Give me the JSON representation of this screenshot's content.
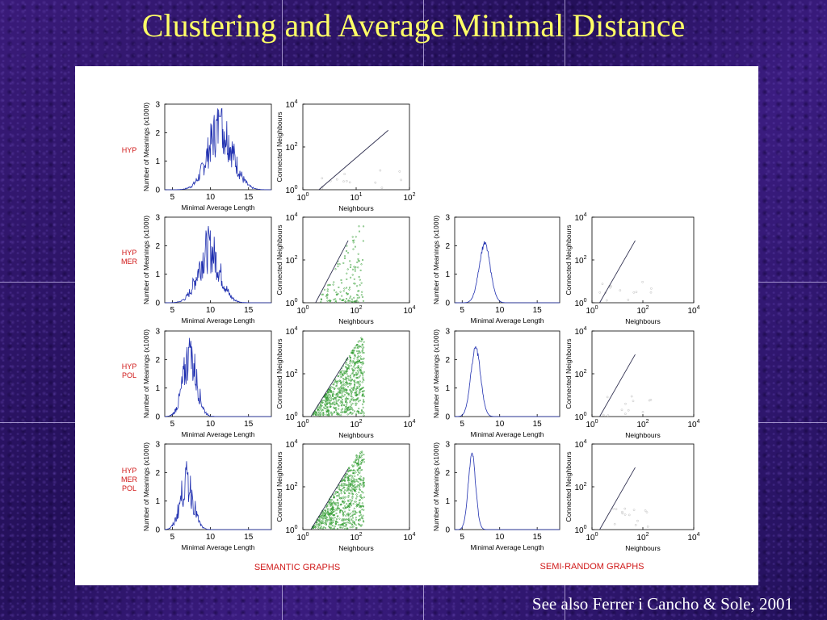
{
  "slide": {
    "title": "Clustering and Average Minimal Distance",
    "footnote": "See also Ferrer i Cancho & Sole, 2001"
  },
  "colors": {
    "title": "#ffff66",
    "background": "#2e1466",
    "row_label": "#d01818",
    "hist_line": "#2030b0",
    "scatter_line": "#303050",
    "scatter_points": "#2a9a2a"
  },
  "groups": [
    "SEMANTIC GRAPHS",
    "SEMI-RANDOM GRAPHS"
  ],
  "rows": [
    {
      "label_lines": [
        "HYP"
      ]
    },
    {
      "label_lines": [
        "HYP",
        "MER"
      ]
    },
    {
      "label_lines": [
        "HYP",
        "POL"
      ]
    },
    {
      "label_lines": [
        "HYP",
        "MER",
        "POL"
      ]
    }
  ],
  "axes": {
    "hist": {
      "xlabel": "Minimal Average Length",
      "ylabel": "Number of Meanings (x1000)",
      "xticks": [
        "5",
        "10",
        "15"
      ],
      "yticks": [
        "0",
        "1",
        "2",
        "3"
      ],
      "xlim": [
        4,
        18
      ],
      "ylim": [
        0,
        3
      ]
    },
    "scatter": {
      "xlabel": "Neighbours",
      "ylabel": "Connected Neighbours",
      "tick_base": "10"
    }
  },
  "chart_data": [
    {
      "type": "line",
      "group": "SEMANTIC GRAPHS",
      "row": "HYP",
      "plot": "hist",
      "peak_x": 11.3,
      "peak_y": 2.65,
      "spread": 1.6,
      "jagged": true
    },
    {
      "type": "scatter",
      "group": "SEMANTIC GRAPHS",
      "row": "HYP",
      "plot": "scatter",
      "xticks_exp": [
        "0",
        "1",
        "2"
      ],
      "yticks_exp": [
        "0",
        "2",
        "4"
      ],
      "xlog_range": [
        0,
        2
      ],
      "ylog_range": [
        0,
        4
      ],
      "line": {
        "x": [
          2,
          40
        ],
        "y": [
          1,
          600
        ]
      },
      "points": "sparse"
    },
    {
      "type": "line",
      "group": "SEMANTIC GRAPHS",
      "row": "HYP MER",
      "plot": "hist",
      "peak_x": 9.8,
      "peak_y": 2.25,
      "spread": 1.4,
      "jagged": true
    },
    {
      "type": "scatter",
      "group": "SEMANTIC GRAPHS",
      "row": "HYP MER",
      "plot": "scatter",
      "xticks_exp": [
        "0",
        "2",
        "4"
      ],
      "yticks_exp": [
        "0",
        "2",
        "4"
      ],
      "xlog_range": [
        0,
        4
      ],
      "ylog_range": [
        0,
        4
      ],
      "line": {
        "x": [
          3,
          50
        ],
        "y": [
          1,
          800
        ]
      },
      "points": "medium"
    },
    {
      "type": "line",
      "group": "SEMI-RANDOM GRAPHS",
      "row": "HYP MER",
      "plot": "hist",
      "peak_x": 8.0,
      "peak_y": 2.1,
      "spread": 0.75,
      "jagged": false
    },
    {
      "type": "scatter",
      "group": "SEMI-RANDOM GRAPHS",
      "row": "HYP MER",
      "plot": "scatter",
      "xticks_exp": [
        "0",
        "2",
        "4"
      ],
      "yticks_exp": [
        "0",
        "2",
        "4"
      ],
      "xlog_range": [
        0,
        4
      ],
      "ylog_range": [
        0,
        4
      ],
      "line": {
        "x": [
          2,
          50
        ],
        "y": [
          1,
          800
        ]
      },
      "points": "sparse"
    },
    {
      "type": "line",
      "group": "SEMANTIC GRAPHS",
      "row": "HYP POL",
      "plot": "hist",
      "peak_x": 7.3,
      "peak_y": 2.5,
      "spread": 0.9,
      "jagged": true
    },
    {
      "type": "scatter",
      "group": "SEMANTIC GRAPHS",
      "row": "HYP POL",
      "plot": "scatter",
      "xticks_exp": [
        "0",
        "2",
        "4"
      ],
      "yticks_exp": [
        "0",
        "2",
        "4"
      ],
      "xlog_range": [
        0,
        4
      ],
      "ylog_range": [
        0,
        4
      ],
      "line": {
        "x": [
          2,
          50
        ],
        "y": [
          1,
          600
        ]
      },
      "points": "dense"
    },
    {
      "type": "line",
      "group": "SEMI-RANDOM GRAPHS",
      "row": "HYP POL",
      "plot": "hist",
      "peak_x": 6.8,
      "peak_y": 2.45,
      "spread": 0.65,
      "jagged": false
    },
    {
      "type": "scatter",
      "group": "SEMI-RANDOM GRAPHS",
      "row": "HYP POL",
      "plot": "scatter",
      "xticks_exp": [
        "0",
        "2",
        "4"
      ],
      "yticks_exp": [
        "0",
        "2",
        "4"
      ],
      "xlog_range": [
        0,
        4
      ],
      "ylog_range": [
        0,
        4
      ],
      "line": {
        "x": [
          2,
          50
        ],
        "y": [
          1,
          800
        ]
      },
      "points": "sparse"
    },
    {
      "type": "line",
      "group": "SEMANTIC GRAPHS",
      "row": "HYP MER POL",
      "plot": "hist",
      "peak_x": 6.9,
      "peak_y": 2.0,
      "spread": 0.85,
      "jagged": true
    },
    {
      "type": "scatter",
      "group": "SEMANTIC GRAPHS",
      "row": "HYP MER POL",
      "plot": "scatter",
      "xticks_exp": [
        "0",
        "2",
        "4"
      ],
      "yticks_exp": [
        "0",
        "2",
        "4"
      ],
      "xlog_range": [
        0,
        4
      ],
      "ylog_range": [
        0,
        4
      ],
      "line": {
        "x": [
          2,
          50
        ],
        "y": [
          1,
          700
        ]
      },
      "points": "dense"
    },
    {
      "type": "line",
      "group": "SEMI-RANDOM GRAPHS",
      "row": "HYP MER POL",
      "plot": "hist",
      "peak_x": 6.3,
      "peak_y": 2.65,
      "spread": 0.5,
      "jagged": false
    },
    {
      "type": "scatter",
      "group": "SEMI-RANDOM GRAPHS",
      "row": "HYP MER POL",
      "plot": "scatter",
      "xticks_exp": [
        "0",
        "2",
        "4"
      ],
      "yticks_exp": [
        "0",
        "2",
        "4"
      ],
      "xlog_range": [
        0,
        4
      ],
      "ylog_range": [
        0,
        4
      ],
      "line": {
        "x": [
          2,
          50
        ],
        "y": [
          1,
          800
        ]
      },
      "points": "sparse"
    }
  ]
}
